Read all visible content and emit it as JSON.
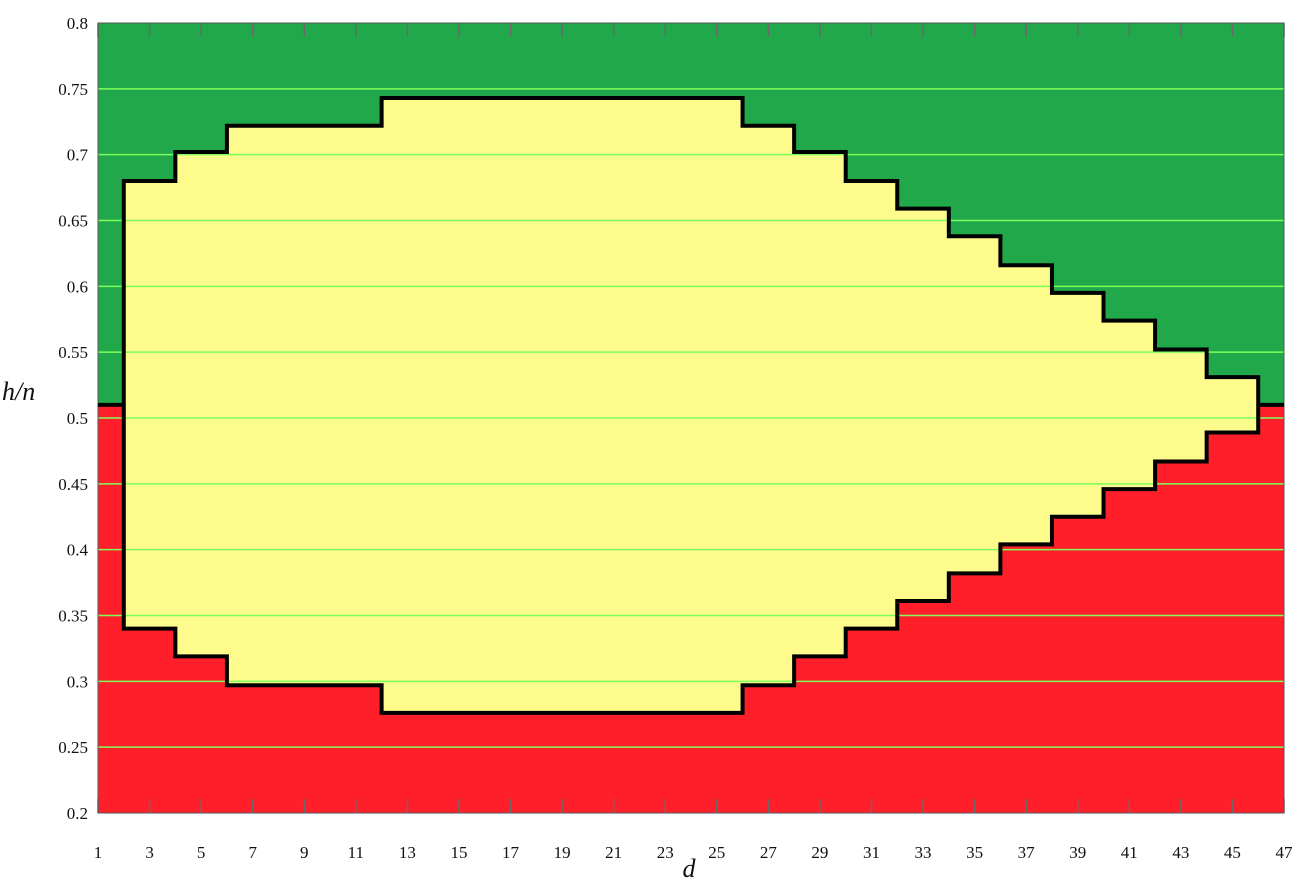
{
  "chart_data": {
    "type": "area",
    "xlabel": "d",
    "ylabel": "h/n",
    "xlim": [
      1,
      47
    ],
    "ylim": [
      0.2,
      0.8
    ],
    "x_ticks": [
      "1",
      "3",
      "5",
      "7",
      "9",
      "11",
      "13",
      "15",
      "17",
      "19",
      "21",
      "23",
      "25",
      "27",
      "29",
      "31",
      "33",
      "35",
      "37",
      "39",
      "41",
      "43",
      "45",
      "47"
    ],
    "y_ticks": [
      "0.8",
      "0.75",
      "0.7",
      "0.65",
      "0.6",
      "0.55",
      "0.5",
      "0.45",
      "0.4",
      "0.35",
      "0.3",
      "0.25",
      "0.2"
    ],
    "grid": true,
    "regions": [
      {
        "color": "#21a84a",
        "position": "top"
      },
      {
        "color": "#fdfb8c",
        "position": "middle"
      },
      {
        "color": "#ff1f2a",
        "position": "bottom"
      }
    ],
    "divider_y": 0.51,
    "upper_boundary": [
      [
        2,
        0.68
      ],
      [
        4,
        0.68
      ],
      [
        4,
        0.702
      ],
      [
        6,
        0.702
      ],
      [
        6,
        0.722
      ],
      [
        12,
        0.722
      ],
      [
        12,
        0.743
      ],
      [
        26,
        0.743
      ],
      [
        26,
        0.722
      ],
      [
        28,
        0.722
      ],
      [
        28,
        0.702
      ],
      [
        30,
        0.702
      ],
      [
        30,
        0.68
      ],
      [
        32,
        0.68
      ],
      [
        32,
        0.659
      ],
      [
        34,
        0.659
      ],
      [
        34,
        0.638
      ],
      [
        36,
        0.638
      ],
      [
        36,
        0.616
      ],
      [
        38,
        0.616
      ],
      [
        38,
        0.595
      ],
      [
        40,
        0.595
      ],
      [
        40,
        0.574
      ],
      [
        42,
        0.574
      ],
      [
        42,
        0.552
      ],
      [
        44,
        0.552
      ],
      [
        44,
        0.531
      ],
      [
        46,
        0.531
      ],
      [
        46,
        0.51
      ]
    ],
    "lower_boundary": [
      [
        2,
        0.34
      ],
      [
        4,
        0.34
      ],
      [
        4,
        0.319
      ],
      [
        6,
        0.319
      ],
      [
        6,
        0.297
      ],
      [
        12,
        0.297
      ],
      [
        12,
        0.276
      ],
      [
        26,
        0.276
      ],
      [
        26,
        0.297
      ],
      [
        28,
        0.297
      ],
      [
        28,
        0.319
      ],
      [
        30,
        0.319
      ],
      [
        30,
        0.34
      ],
      [
        32,
        0.34
      ],
      [
        32,
        0.361
      ],
      [
        34,
        0.361
      ],
      [
        34,
        0.382
      ],
      [
        36,
        0.382
      ],
      [
        36,
        0.404
      ],
      [
        38,
        0.404
      ],
      [
        38,
        0.425
      ],
      [
        40,
        0.425
      ],
      [
        40,
        0.446
      ],
      [
        42,
        0.446
      ],
      [
        42,
        0.467
      ],
      [
        44,
        0.467
      ],
      [
        44,
        0.489
      ],
      [
        46,
        0.489
      ],
      [
        46,
        0.51
      ]
    ]
  }
}
